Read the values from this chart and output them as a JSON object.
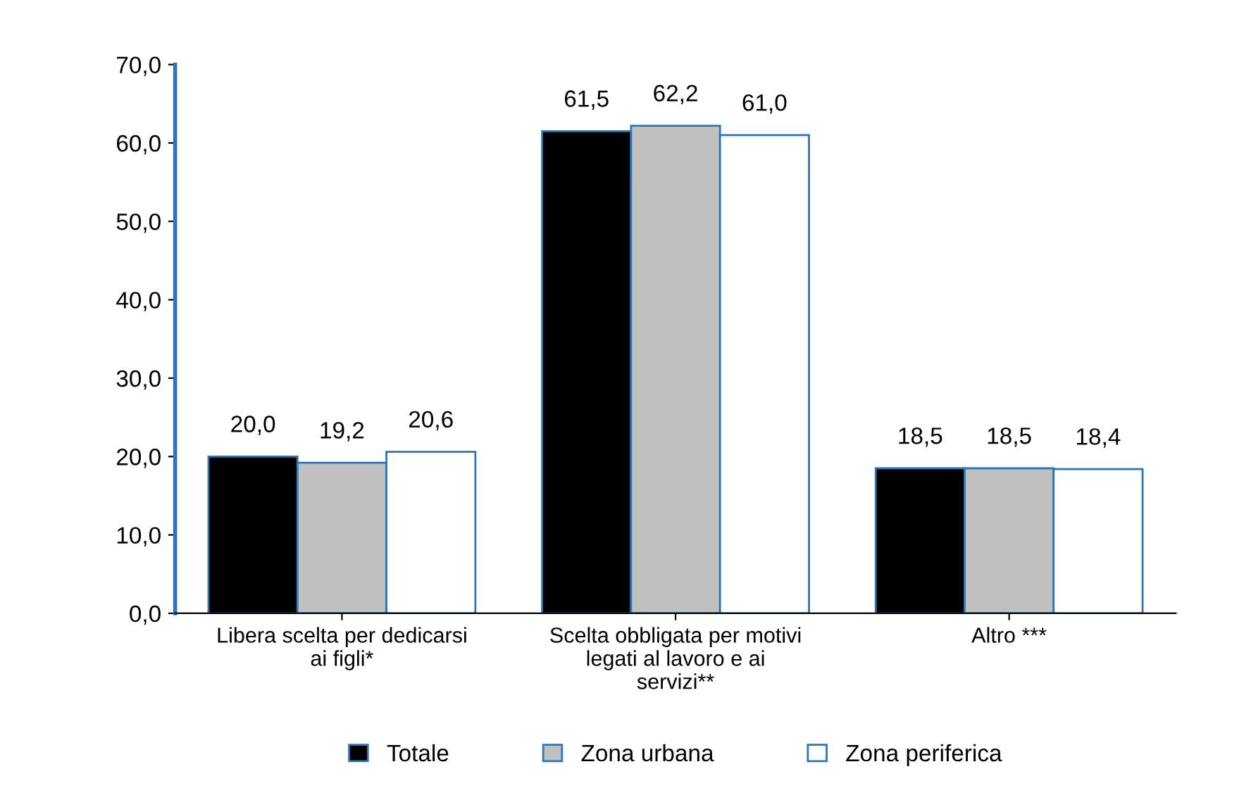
{
  "chart_data": {
    "type": "bar",
    "categories": [
      "Libera scelta per dedicarsi\nai figli*",
      "Scelta obbligata per motivi\nlegati al lavoro e ai\nservizi**",
      "Altro ***"
    ],
    "series": [
      {
        "name": "Totale",
        "color": "#000000",
        "values": [
          20.0,
          61.5,
          18.5
        ],
        "value_labels": [
          "20,0",
          "61,5",
          "18,5"
        ]
      },
      {
        "name": "Zona urbana",
        "color": "#c0c0c0",
        "values": [
          19.2,
          62.2,
          18.5
        ],
        "value_labels": [
          "19,2",
          "62,2",
          "18,5"
        ]
      },
      {
        "name": "Zona periferica",
        "color": "#ffffff",
        "values": [
          20.6,
          61.0,
          18.4
        ],
        "value_labels": [
          "20,6",
          "61,0",
          "18,4"
        ]
      }
    ],
    "ylim": [
      0,
      70
    ],
    "yticks": [
      {
        "value": 0,
        "label": "0,0"
      },
      {
        "value": 10,
        "label": "10,0"
      },
      {
        "value": 20,
        "label": "20,0"
      },
      {
        "value": 30,
        "label": "30,0"
      },
      {
        "value": 40,
        "label": "40,0"
      },
      {
        "value": 50,
        "label": "50,0"
      },
      {
        "value": 60,
        "label": "60,0"
      },
      {
        "value": 70,
        "label": "70,0"
      }
    ],
    "grid": false,
    "legend": "bottom"
  }
}
